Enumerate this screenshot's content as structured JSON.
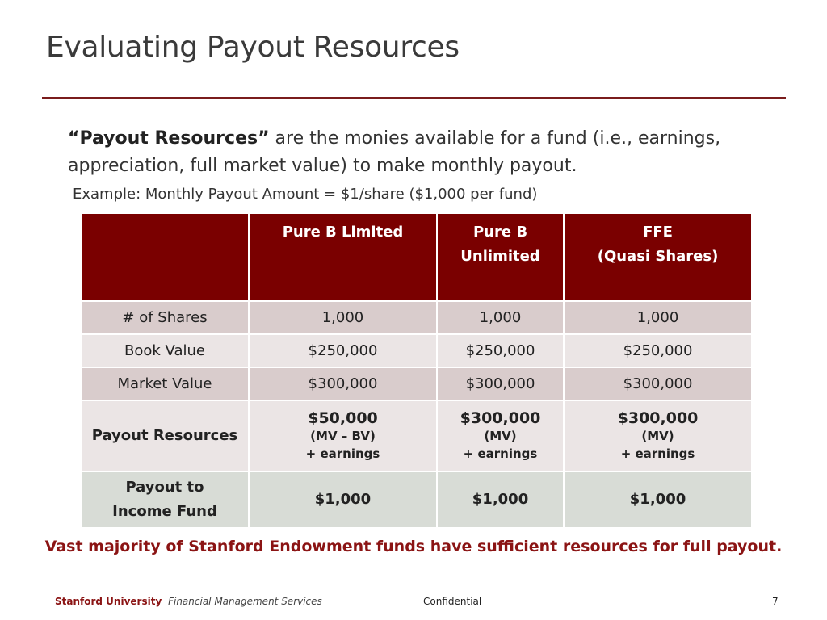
{
  "slide": {
    "title": "Evaluating Payout Resources",
    "intro_bold": "“Payout Resources”",
    "intro_rest": " are the monies available for a fund (i.e., earnings, appreciation, full market value) to make monthly payout.",
    "example": "Example: Monthly Payout Amount = $1/share ($1,000 per fund)",
    "callout": "Vast majority of Stanford Endowment funds have sufficient resources for full payout."
  },
  "table": {
    "headers": [
      {
        "line1": "",
        "line2": ""
      },
      {
        "line1": "Pure B Limited",
        "line2": ""
      },
      {
        "line1": "Pure B",
        "line2": "Unlimited"
      },
      {
        "line1": "FFE",
        "line2": "(Quasi Shares)"
      }
    ],
    "shares": {
      "label": "# of Shares",
      "values": [
        "1,000",
        "1,000",
        "1,000"
      ]
    },
    "book_value": {
      "label": "Book Value",
      "values": [
        "$250,000",
        "$250,000",
        "$250,000"
      ]
    },
    "market_value": {
      "label": "Market Value",
      "values": [
        "$300,000",
        "$300,000",
        "$300,000"
      ]
    },
    "payout_resources": {
      "label": "Payout Resources",
      "cells": [
        {
          "amount": "$50,000",
          "basis": "(MV – BV)",
          "extra": "+ earnings"
        },
        {
          "amount": "$300,000",
          "basis": "(MV)",
          "extra": "+ earnings"
        },
        {
          "amount": "$300,000",
          "basis": "(MV)",
          "extra": "+ earnings"
        }
      ]
    },
    "payout_income": {
      "label_line1": "Payout to",
      "label_line2": "Income Fund",
      "values": [
        "$1,000",
        "$1,000",
        "$1,000"
      ]
    }
  },
  "footer": {
    "university": "Stanford University",
    "department": "Financial Management Services",
    "confidential": "Confidential",
    "page_number": "7"
  },
  "colors": {
    "accent": "#7a0000",
    "callout": "#8b1414",
    "row_shade": "#d9cccc",
    "row_light": "#ebe5e5",
    "row_income": "#d8dcd6"
  }
}
